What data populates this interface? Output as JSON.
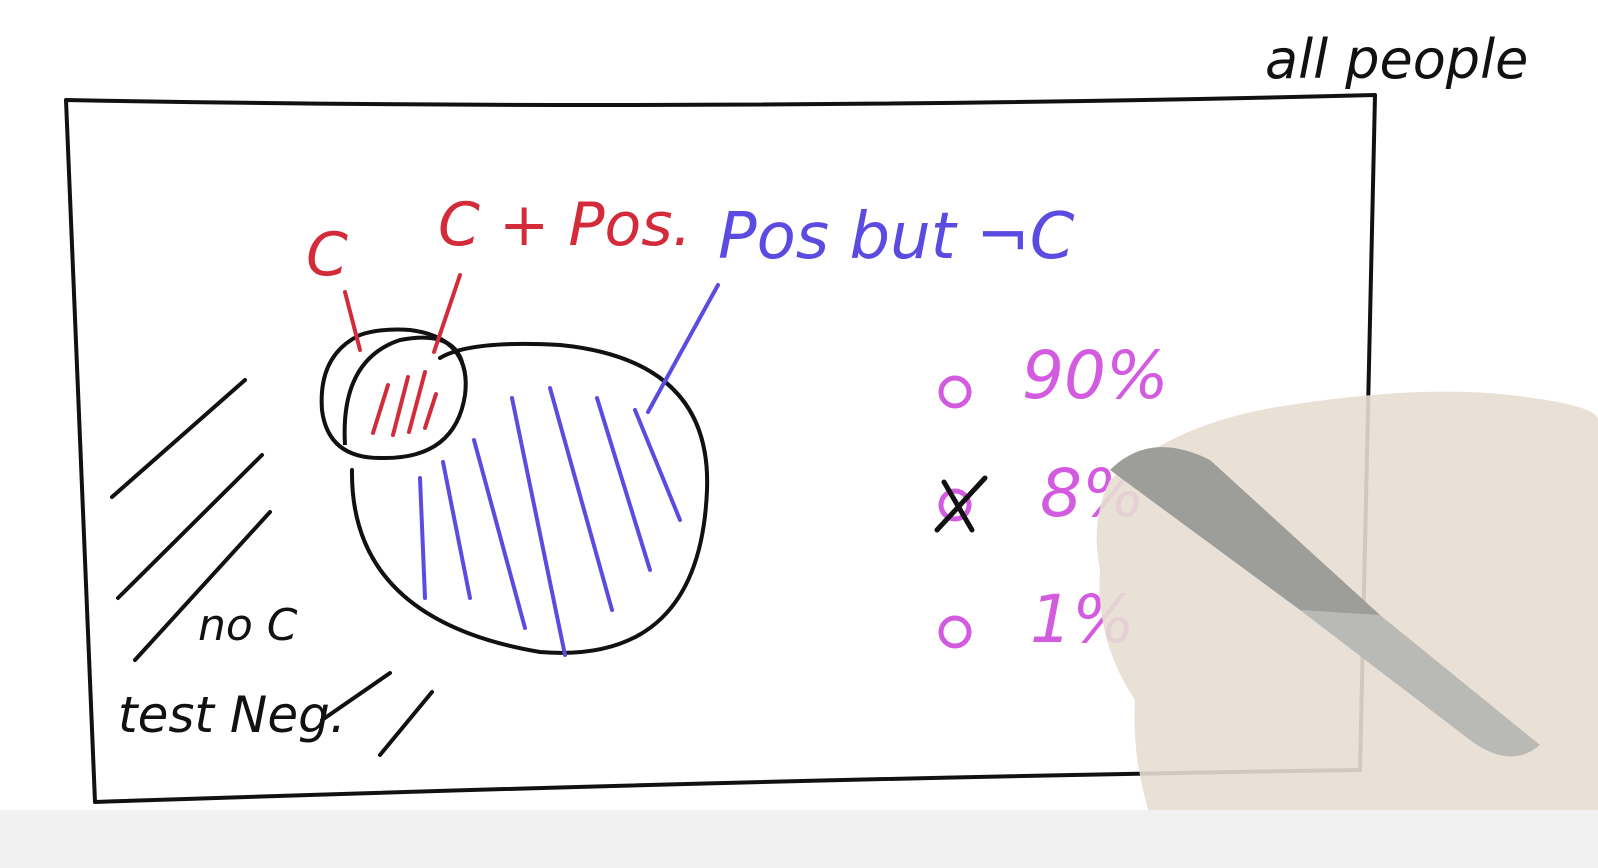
{
  "title": "all people",
  "labels": {
    "c": "C",
    "c_pos": "C + Pos.",
    "pos_not_c": "Pos but ¬C",
    "no_c": "no C",
    "test_neg": "test Neg."
  },
  "quiz": {
    "options": [
      {
        "text": "90%",
        "selected": false
      },
      {
        "text": "8%",
        "selected": true
      },
      {
        "text": "1%",
        "selected": false
      }
    ]
  },
  "colors": {
    "red": "#d42b3a",
    "blue": "#5b4be0",
    "magenta": "#d35be0",
    "ink": "#111111"
  }
}
